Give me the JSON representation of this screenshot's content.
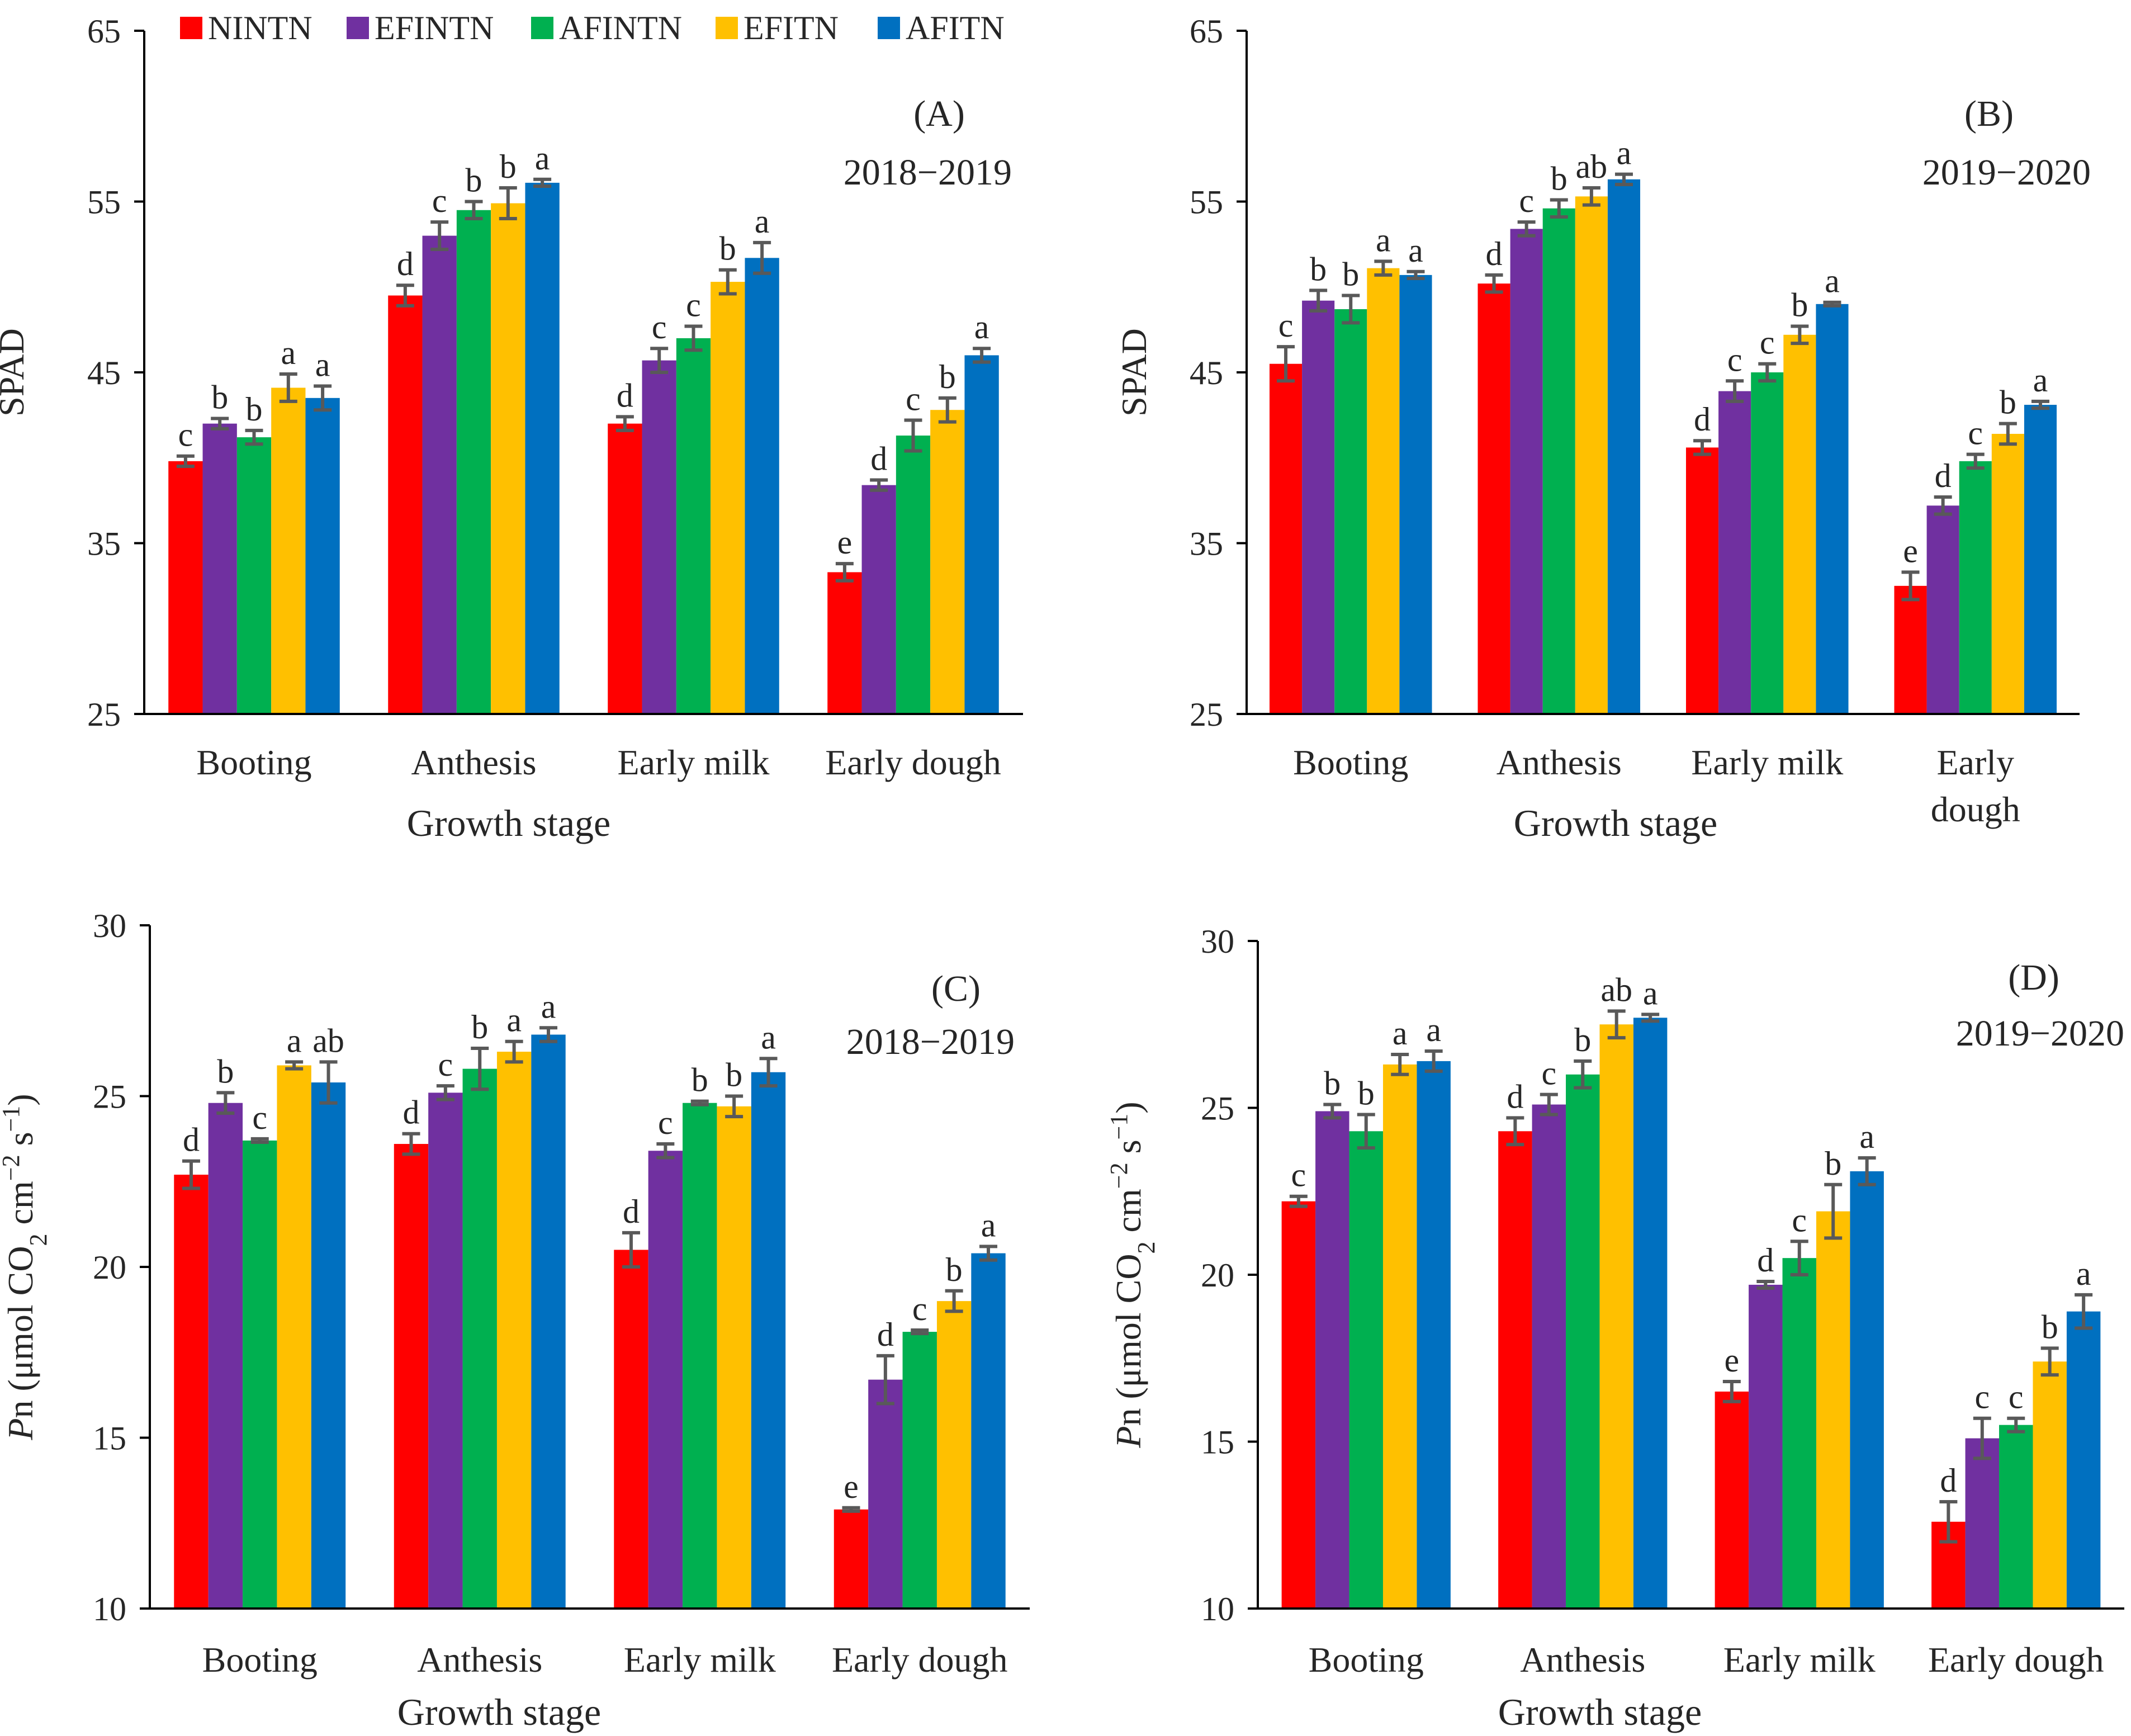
{
  "legend": {
    "entries": [
      {
        "name": "NINTN",
        "color": "#ff0000"
      },
      {
        "name": "EFINTN",
        "color": "#7030a0"
      },
      {
        "name": "AFINTN",
        "color": "#00b050"
      },
      {
        "name": "EFITN",
        "color": "#ffc000"
      },
      {
        "name": "AFITN",
        "color": "#0070c0"
      }
    ]
  },
  "colors": {
    "axis": "#000000",
    "error_bar": "#595959",
    "text": "#262626"
  },
  "chart_data": [
    {
      "type": "bar",
      "panel": "(A)",
      "year": "2018−2019",
      "xlabel": "Growth stage",
      "ylabel": "SPAD",
      "ylim": [
        25,
        65
      ],
      "yticks": [
        "25",
        "35",
        "45",
        "55",
        "65"
      ],
      "categories": [
        [
          "Booting"
        ],
        [
          "Anthesis"
        ],
        [
          "Early milk"
        ],
        [
          "Early dough"
        ]
      ],
      "series": [
        {
          "name": "NINTN",
          "values": [
            39.8,
            49.5,
            42.0,
            33.3
          ],
          "errors": [
            0.3,
            0.6,
            0.4,
            0.5
          ],
          "letters": [
            "c",
            "d",
            "d",
            "e"
          ]
        },
        {
          "name": "EFINTN",
          "values": [
            42.0,
            53.0,
            45.7,
            38.4
          ],
          "errors": [
            0.3,
            0.8,
            0.7,
            0.3
          ],
          "letters": [
            "b",
            "c",
            "c",
            "d"
          ]
        },
        {
          "name": "AFINTN",
          "values": [
            41.2,
            54.5,
            47.0,
            41.3
          ],
          "errors": [
            0.4,
            0.5,
            0.7,
            0.9
          ],
          "letters": [
            "b",
            "b",
            "c",
            "c"
          ]
        },
        {
          "name": "EFITN",
          "values": [
            44.1,
            54.9,
            50.3,
            42.8
          ],
          "errors": [
            0.8,
            0.9,
            0.7,
            0.7
          ],
          "letters": [
            "a",
            "b",
            "b",
            "b"
          ]
        },
        {
          "name": "AFITN",
          "values": [
            43.5,
            56.1,
            51.7,
            46.0
          ],
          "errors": [
            0.7,
            0.2,
            0.9,
            0.4
          ],
          "letters": [
            "a",
            "a",
            "a",
            "a"
          ]
        }
      ]
    },
    {
      "type": "bar",
      "panel": "(B)",
      "year": "2019−2020",
      "xlabel": "Growth stage",
      "ylabel": "SPAD",
      "ylim": [
        25,
        65
      ],
      "yticks": [
        "25",
        "35",
        "45",
        "55",
        "65"
      ],
      "categories": [
        [
          "Booting"
        ],
        [
          "Anthesis"
        ],
        [
          "Early milk"
        ],
        [
          "Early",
          "dough"
        ]
      ],
      "series": [
        {
          "name": "NINTN",
          "values": [
            45.5,
            50.2,
            40.6,
            32.5
          ],
          "errors": [
            1.0,
            0.5,
            0.4,
            0.8
          ],
          "letters": [
            "c",
            "d",
            "d",
            "e"
          ]
        },
        {
          "name": "EFINTN",
          "values": [
            49.2,
            53.4,
            43.9,
            37.2
          ],
          "errors": [
            0.6,
            0.4,
            0.6,
            0.5
          ],
          "letters": [
            "b",
            "c",
            "c",
            "d"
          ]
        },
        {
          "name": "AFINTN",
          "values": [
            48.7,
            54.6,
            45.0,
            39.8
          ],
          "errors": [
            0.8,
            0.5,
            0.5,
            0.4
          ],
          "letters": [
            "b",
            "b",
            "c",
            "c"
          ]
        },
        {
          "name": "EFITN",
          "values": [
            51.1,
            55.3,
            47.2,
            41.4
          ],
          "errors": [
            0.4,
            0.5,
            0.5,
            0.6
          ],
          "letters": [
            "a",
            "ab",
            "b",
            "b"
          ]
        },
        {
          "name": "AFITN",
          "values": [
            50.7,
            56.3,
            49.0,
            43.1
          ],
          "errors": [
            0.2,
            0.3,
            0.1,
            0.2
          ],
          "letters": [
            "a",
            "a",
            "a",
            "a"
          ]
        }
      ]
    },
    {
      "type": "bar",
      "panel": "(C)",
      "year": "2018−2019",
      "xlabel": "Growth stage",
      "ylabel": "Pn (μmol CO2 cm−2 s−1)",
      "ylim": [
        10,
        30
      ],
      "yticks": [
        "10",
        "15",
        "20",
        "25",
        "30"
      ],
      "categories": [
        [
          "Booting"
        ],
        [
          "Anthesis"
        ],
        [
          "Early milk"
        ],
        [
          "Early dough"
        ]
      ],
      "series": [
        {
          "name": "NINTN",
          "values": [
            22.7,
            23.6,
            20.5,
            12.9
          ],
          "errors": [
            0.4,
            0.3,
            0.5,
            0.05
          ],
          "letters": [
            "d",
            "d",
            "d",
            "e"
          ]
        },
        {
          "name": "EFINTN",
          "values": [
            24.8,
            25.1,
            23.4,
            16.7
          ],
          "errors": [
            0.3,
            0.2,
            0.2,
            0.7
          ],
          "letters": [
            "b",
            "c",
            "c",
            "d"
          ]
        },
        {
          "name": "AFINTN",
          "values": [
            23.7,
            25.8,
            24.8,
            18.1
          ],
          "errors": [
            0.05,
            0.6,
            0.05,
            0.05
          ],
          "letters": [
            "c",
            "b",
            "b",
            "c"
          ]
        },
        {
          "name": "EFITN",
          "values": [
            25.9,
            26.3,
            24.7,
            19.0
          ],
          "errors": [
            0.1,
            0.3,
            0.3,
            0.3
          ],
          "letters": [
            "a",
            "a",
            "b",
            "b"
          ]
        },
        {
          "name": "AFITN",
          "values": [
            25.4,
            26.8,
            25.7,
            20.4
          ],
          "errors": [
            0.6,
            0.2,
            0.4,
            0.2
          ],
          "letters": [
            "ab",
            "a",
            "a",
            "a"
          ]
        }
      ]
    },
    {
      "type": "bar",
      "panel": "(D)",
      "year": "2019−2020",
      "xlabel": "Growth stage",
      "ylabel": "Pn (μmol CO2 cm−2 s−1)",
      "ylim": [
        10,
        30
      ],
      "yticks": [
        "10",
        "15",
        "20",
        "25",
        "30"
      ],
      "categories": [
        [
          "Booting"
        ],
        [
          "Anthesis"
        ],
        [
          "Early milk"
        ],
        [
          "Early dough"
        ]
      ],
      "series": [
        {
          "name": "NINTN",
          "values": [
            22.2,
            24.3,
            16.5,
            12.6
          ],
          "errors": [
            0.15,
            0.4,
            0.3,
            0.6
          ],
          "letters": [
            "c",
            "d",
            "e",
            "d"
          ]
        },
        {
          "name": "EFINTN",
          "values": [
            24.9,
            25.1,
            19.7,
            15.1
          ],
          "errors": [
            0.2,
            0.3,
            0.1,
            0.6
          ],
          "letters": [
            "b",
            "c",
            "d",
            "c"
          ]
        },
        {
          "name": "AFINTN",
          "values": [
            24.3,
            26.0,
            20.5,
            15.5
          ],
          "errors": [
            0.5,
            0.4,
            0.5,
            0.2
          ],
          "letters": [
            "b",
            "b",
            "c",
            "c"
          ]
        },
        {
          "name": "EFITN",
          "values": [
            26.3,
            27.5,
            21.9,
            17.4
          ],
          "errors": [
            0.3,
            0.4,
            0.8,
            0.4
          ],
          "letters": [
            "a",
            "ab",
            "b",
            "b"
          ]
        },
        {
          "name": "AFITN",
          "values": [
            26.4,
            27.7,
            23.1,
            18.9
          ],
          "errors": [
            0.3,
            0.1,
            0.4,
            0.5
          ],
          "letters": [
            "a",
            "a",
            "a",
            "a"
          ]
        }
      ]
    }
  ]
}
